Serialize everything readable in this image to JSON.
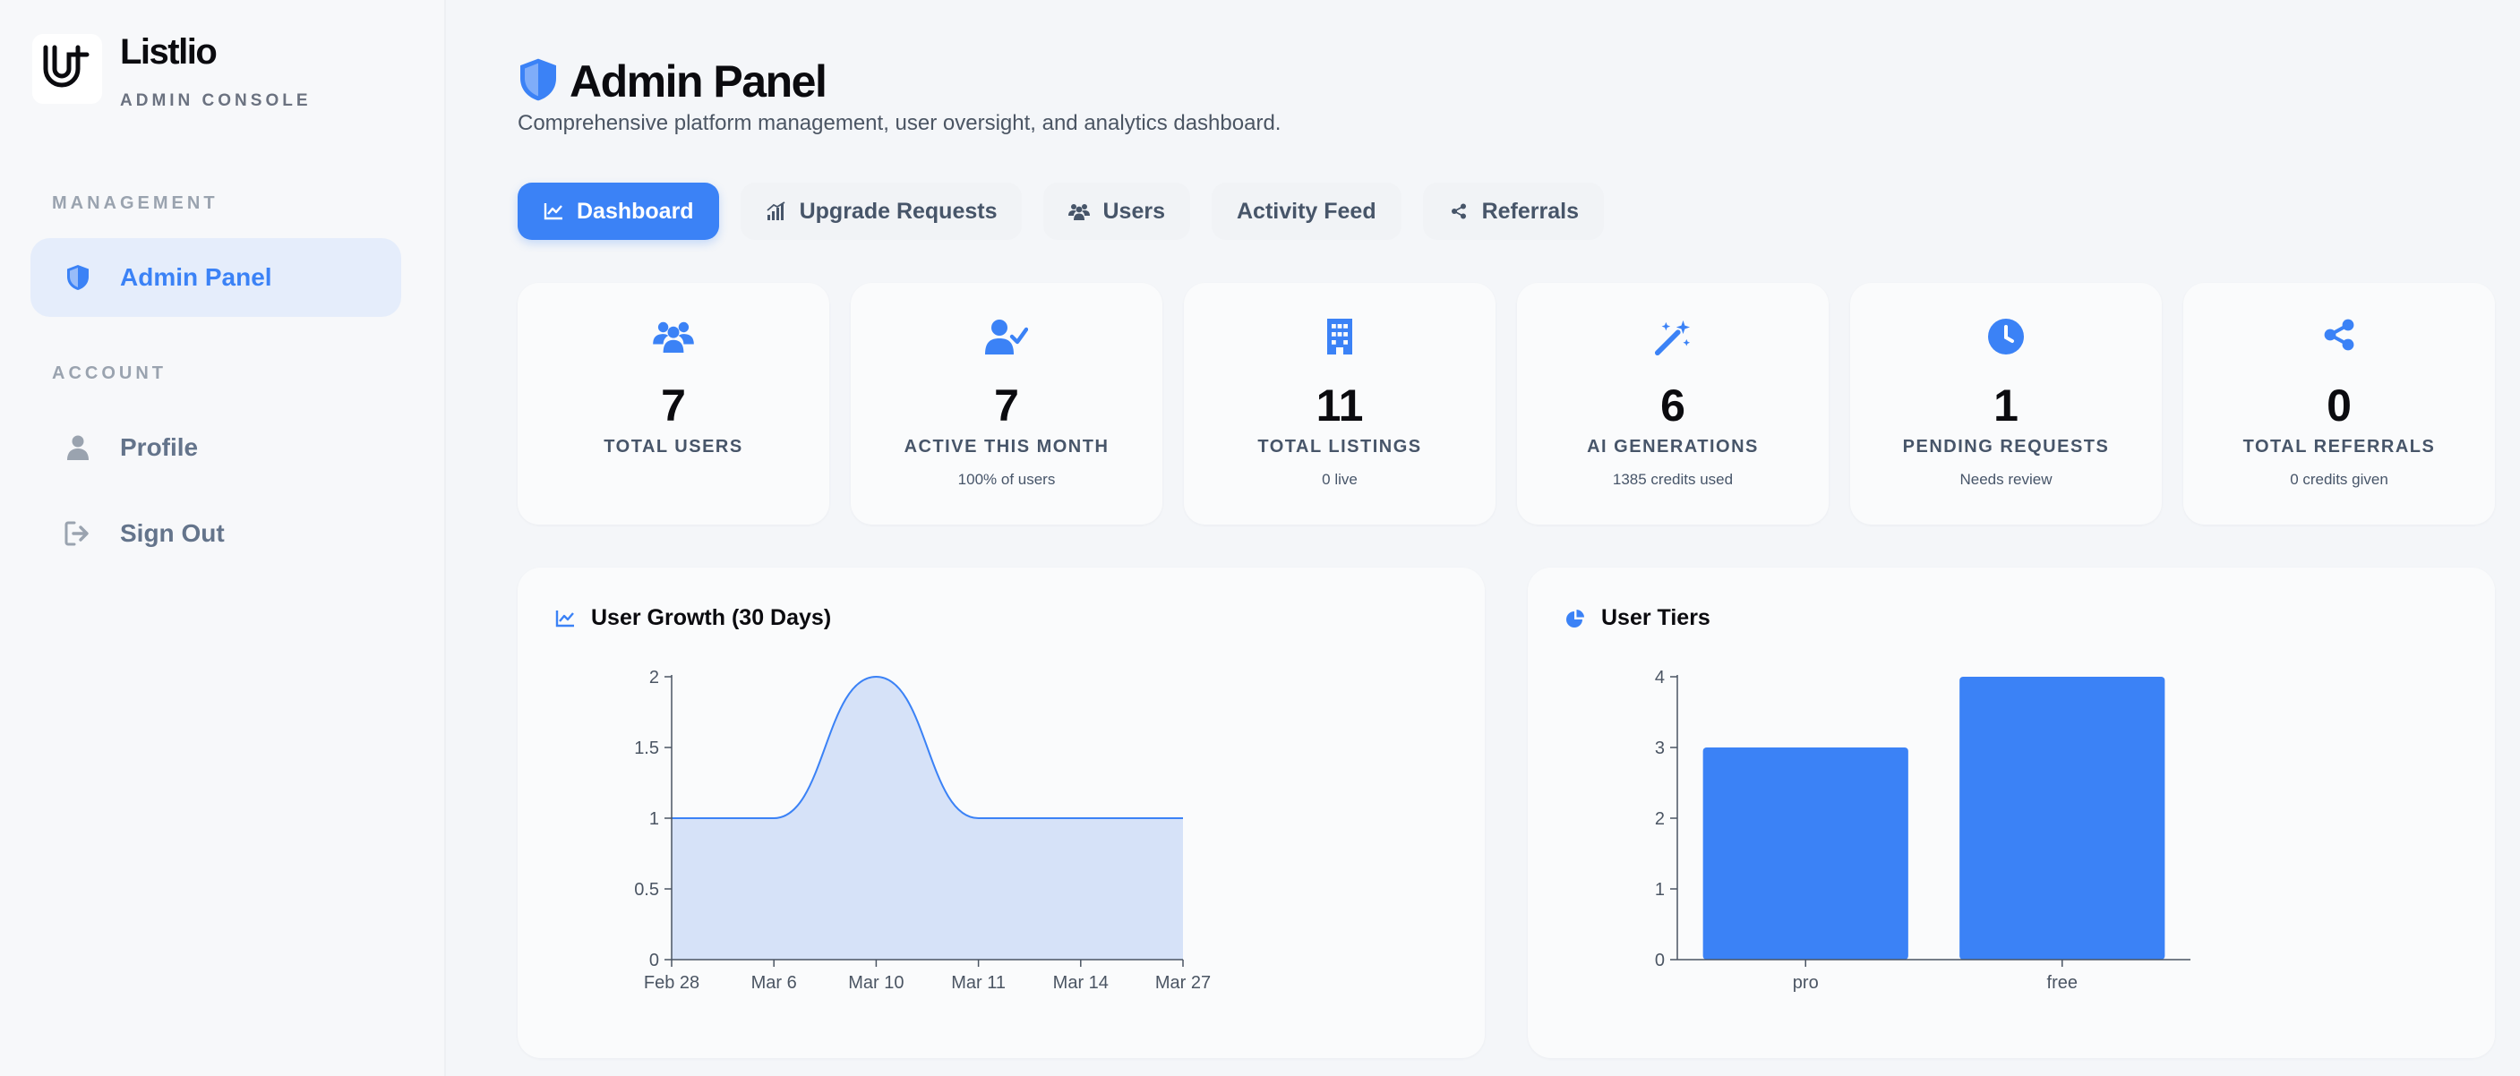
{
  "sidebar": {
    "brand_name": "Listlio",
    "brand_sub": "ADMIN CONSOLE",
    "sections": [
      {
        "label": "MANAGEMENT",
        "items": [
          {
            "label": "Admin Panel",
            "icon": "shield-icon",
            "active": true
          }
        ]
      },
      {
        "label": "ACCOUNT",
        "items": [
          {
            "label": "Profile",
            "icon": "user-icon"
          },
          {
            "label": "Sign Out",
            "icon": "sign-out-icon"
          }
        ]
      }
    ]
  },
  "header": {
    "title": "Admin Panel",
    "subtitle": "Comprehensive platform management, user oversight, and analytics dashboard."
  },
  "tabs": [
    {
      "label": "Dashboard",
      "icon": "line-chart-icon",
      "active": true
    },
    {
      "label": "Upgrade Requests",
      "icon": "bar-trend-icon"
    },
    {
      "label": "Users",
      "icon": "users-icon"
    },
    {
      "label": "Activity Feed",
      "icon": ""
    },
    {
      "label": "Referrals",
      "icon": "share-icon"
    }
  ],
  "stats": [
    {
      "value": "7",
      "label": "TOTAL USERS",
      "note": "",
      "icon": "users-icon"
    },
    {
      "value": "7",
      "label": "ACTIVE THIS MONTH",
      "note": "100% of users",
      "icon": "user-check-icon"
    },
    {
      "value": "11",
      "label": "TOTAL LISTINGS",
      "note": "0 live",
      "icon": "building-icon"
    },
    {
      "value": "6",
      "label": "AI GENERATIONS",
      "note": "1385 credits used",
      "icon": "magic-wand-icon"
    },
    {
      "value": "1",
      "label": "PENDING REQUESTS",
      "note": "Needs review",
      "icon": "clock-icon"
    },
    {
      "value": "0",
      "label": "TOTAL REFERRALS",
      "note": "0 credits given",
      "icon": "share-icon"
    }
  ],
  "colors": {
    "accent": "#3b82f6",
    "area_fill": "#d6e2f8"
  },
  "chart_data": [
    {
      "type": "area",
      "title": "User Growth (30 Days)",
      "icon": "line-chart-icon",
      "x": [
        "Feb 28",
        "Mar 6",
        "Mar 10",
        "Mar 11",
        "Mar 14",
        "Mar 27"
      ],
      "values": [
        1,
        1,
        2,
        1,
        1,
        1
      ],
      "ylim": [
        0,
        2
      ],
      "yticks": [
        0,
        0.5,
        1,
        1.5,
        2
      ],
      "ytick_labels": [
        "0",
        "0.5",
        "1",
        "1.5",
        "2"
      ],
      "xlabel": "",
      "ylabel": "",
      "grid": false
    },
    {
      "type": "bar",
      "title": "User Tiers",
      "icon": "pie-chart-icon",
      "categories": [
        "pro",
        "free"
      ],
      "values": [
        3,
        4
      ],
      "ylim": [
        0,
        4
      ],
      "yticks": [
        0,
        1,
        2,
        3,
        4
      ],
      "xlabel": "",
      "ylabel": "",
      "grid": false
    }
  ]
}
